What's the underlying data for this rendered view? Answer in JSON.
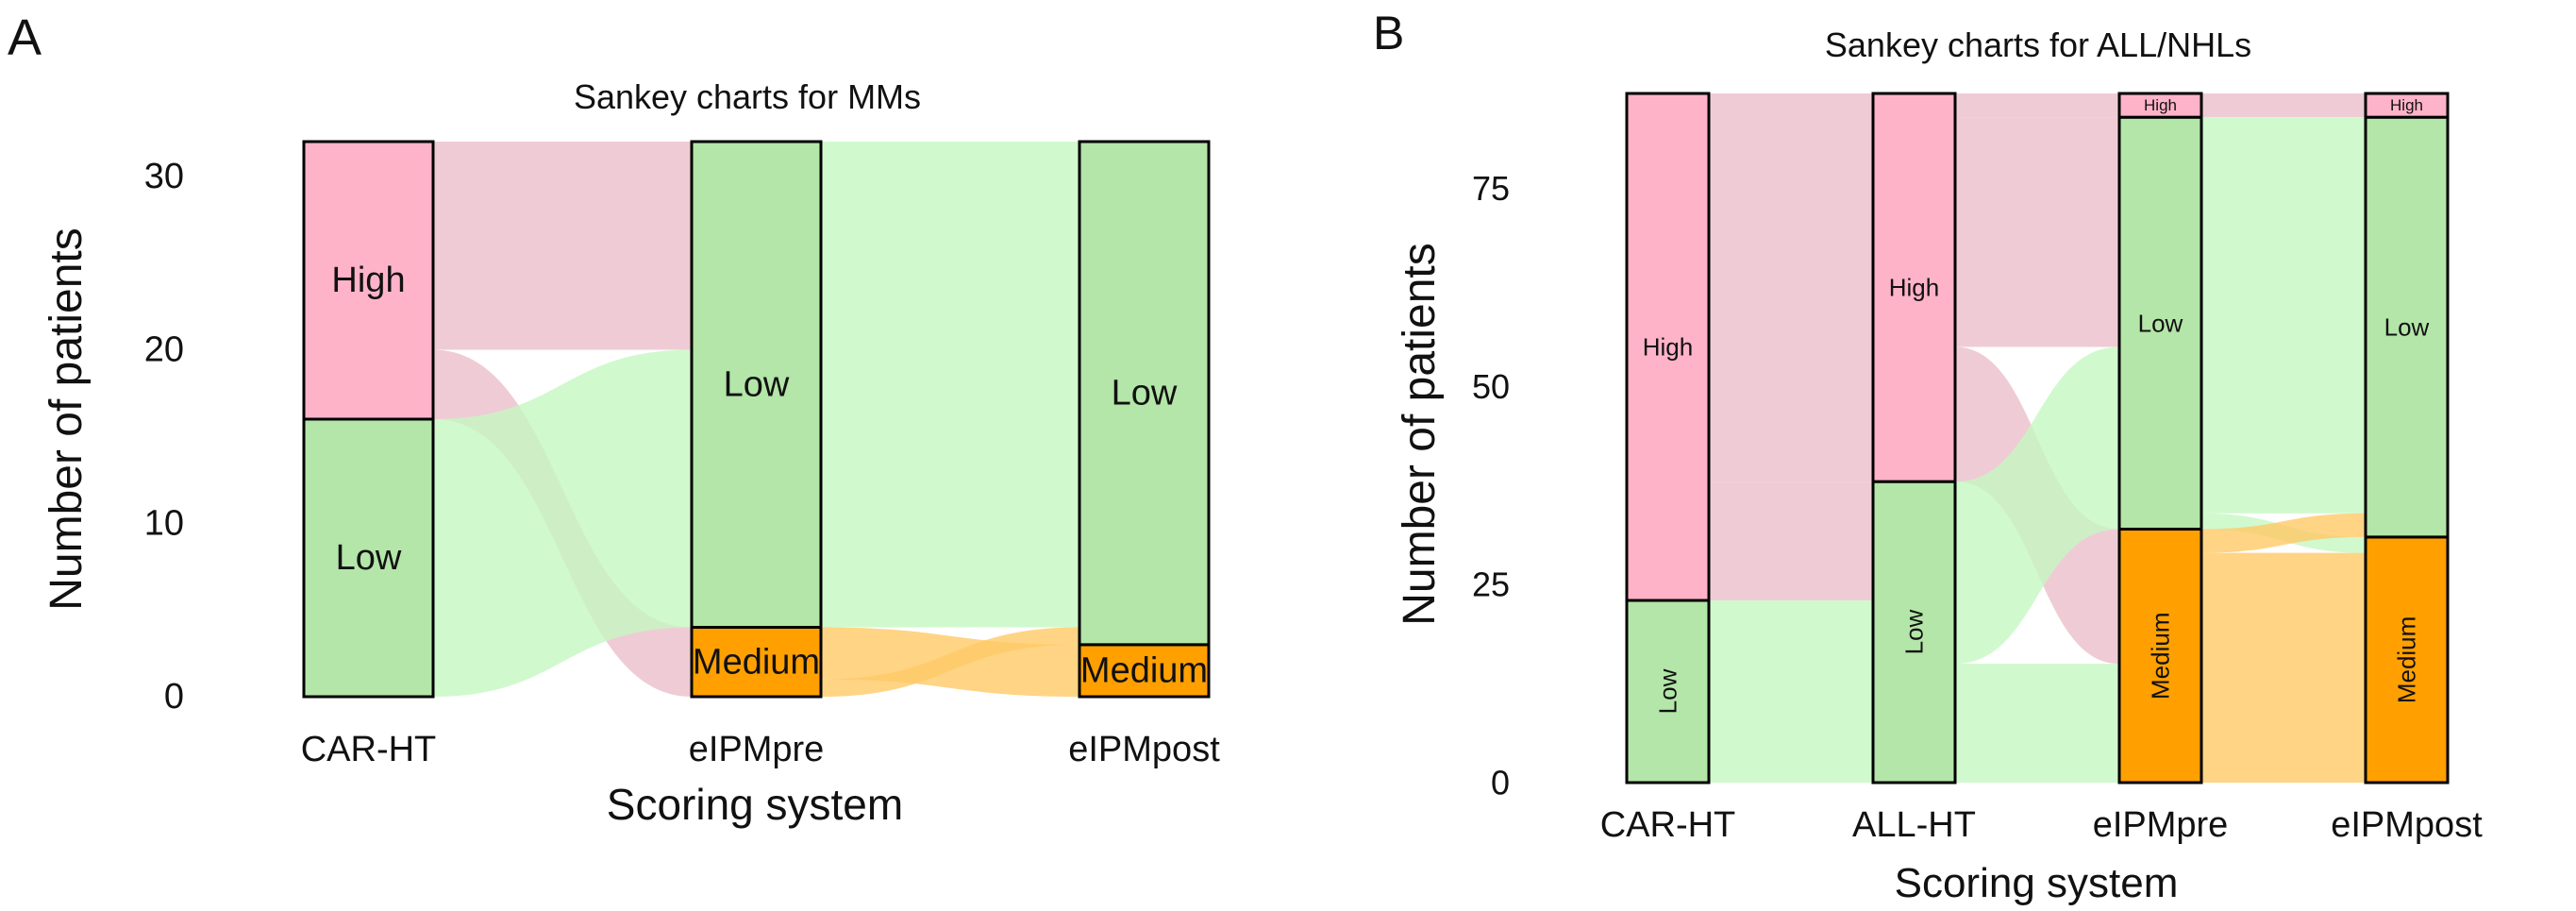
{
  "chart_data": [
    {
      "panel": "A",
      "type": "sankey",
      "title": "Sankey charts for MMs",
      "xlabel": "Scoring system",
      "ylabel": "Number of patients",
      "ylim": [
        0,
        32
      ],
      "yticks": [
        0,
        10,
        20,
        30
      ],
      "stages": [
        "CAR-HT",
        "eIPMpre",
        "eIPMpost"
      ],
      "nodes": [
        [
          {
            "label": "Low",
            "value": 16
          },
          {
            "label": "High",
            "value": 16
          }
        ],
        [
          {
            "label": "Medium",
            "value": 4
          },
          {
            "label": "Low",
            "value": 28
          }
        ],
        [
          {
            "label": "Medium",
            "value": 3
          },
          {
            "label": "Low",
            "value": 29
          }
        ]
      ],
      "flows": [
        [
          {
            "from": "High",
            "to": "Low",
            "value": 12
          },
          {
            "from": "High",
            "to": "Medium",
            "value": 4
          },
          {
            "from": "Low",
            "to": "Low",
            "value": 16
          }
        ],
        [
          {
            "from": "Low",
            "to": "Low",
            "value": 28
          },
          {
            "from": "Medium",
            "to": "Medium",
            "value": 3
          },
          {
            "from": "Medium",
            "to": "Low",
            "value": 1
          }
        ]
      ]
    },
    {
      "panel": "B",
      "type": "sankey",
      "title": "Sankey charts for ALL/NHLs",
      "xlabel": "Scoring system",
      "ylabel": "Number of patients",
      "ylim": [
        0,
        87
      ],
      "yticks": [
        0,
        25,
        50,
        75
      ],
      "stages": [
        "CAR-HT",
        "ALL-HT",
        "eIPMpre",
        "eIPMpost"
      ],
      "nodes": [
        [
          {
            "label": "Low",
            "value": 23
          },
          {
            "label": "High",
            "value": 64
          }
        ],
        [
          {
            "label": "Low",
            "value": 38
          },
          {
            "label": "High",
            "value": 49
          }
        ],
        [
          {
            "label": "Medium",
            "value": 32
          },
          {
            "label": "Low",
            "value": 52
          },
          {
            "label": "High",
            "value": 3
          }
        ],
        [
          {
            "label": "Medium",
            "value": 31
          },
          {
            "label": "Low",
            "value": 53
          },
          {
            "label": "High",
            "value": 3
          }
        ]
      ],
      "flows": [
        [
          {
            "from": "High",
            "to": "High",
            "value": 49
          },
          {
            "from": "High",
            "to": "Low",
            "value": 15
          },
          {
            "from": "Low",
            "to": "Low",
            "value": 23
          }
        ],
        [
          {
            "from": "High",
            "to": "High",
            "value": 3
          },
          {
            "from": "High",
            "to": "Low",
            "value": 29
          },
          {
            "from": "High",
            "to": "Medium",
            "value": 17
          },
          {
            "from": "Low",
            "to": "Low",
            "value": 23
          },
          {
            "from": "Low",
            "to": "Medium",
            "value": 15
          }
        ],
        [
          {
            "from": "High",
            "to": "High",
            "value": 3
          },
          {
            "from": "Low",
            "to": "Low",
            "value": 50
          },
          {
            "from": "Low",
            "to": "Medium",
            "value": 2
          },
          {
            "from": "Medium",
            "to": "Low",
            "value": 3
          },
          {
            "from": "Medium",
            "to": "Medium",
            "value": 29
          }
        ]
      ]
    }
  ],
  "colors": {
    "High": "#FFB3C9",
    "Low": "#B3E6A8",
    "Medium": "#FFA000",
    "flow_High": "#EBBFCB",
    "flow_Low": "#C6F7C2",
    "flow_Medium": "#FFC966"
  }
}
